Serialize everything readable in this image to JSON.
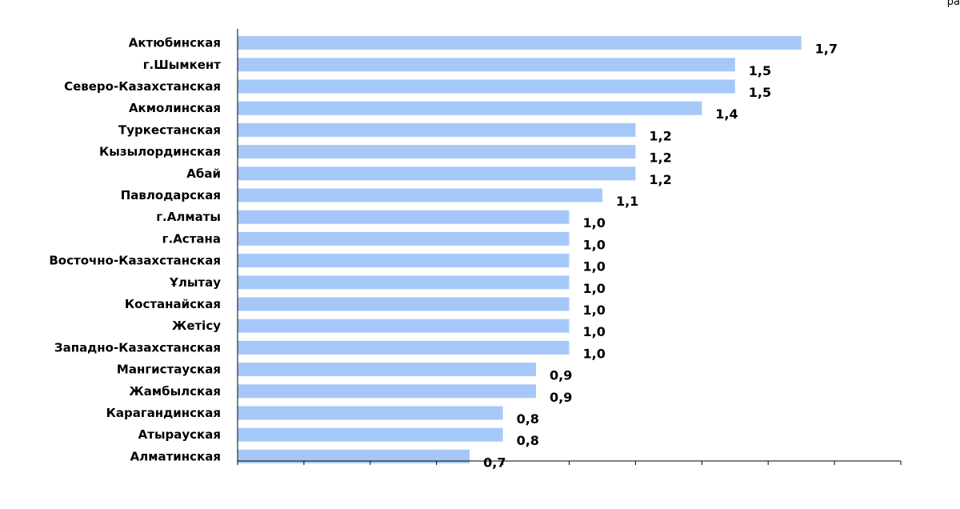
{
  "corner_text": "ра",
  "chart_data": {
    "type": "bar",
    "orientation": "horizontal",
    "categories": [
      "Актюбинская",
      "г.Шымкент",
      "Северо-Казахстанская",
      "Акмолинская",
      "Туркестанская",
      "Кызылординская",
      "Абай",
      "Павлодарская",
      "г.Алматы",
      "г.Астана",
      "Восточно-Казахстанская",
      "Ұлытау",
      "Костанайская",
      "Жетісу",
      "Западно-Казахстанская",
      "Мангистауская",
      "Жамбылская",
      "Карагандинская",
      "Атырауская",
      "Алматинская"
    ],
    "values": [
      1.7,
      1.5,
      1.5,
      1.4,
      1.2,
      1.2,
      1.2,
      1.1,
      1.0,
      1.0,
      1.0,
      1.0,
      1.0,
      1.0,
      1.0,
      0.9,
      0.9,
      0.8,
      0.8,
      0.7
    ],
    "data_labels": [
      "1,7",
      "1,5",
      "1,5",
      "1,4",
      "1,2",
      "1,2",
      "1,2",
      "1,1",
      "1,0",
      "1,0",
      "1,0",
      "1,0",
      "1,0",
      "1,0",
      "1,0",
      "0,9",
      "0,9",
      "0,8",
      "0,8",
      "0,7"
    ],
    "title": "",
    "xlabel": "",
    "ylabel": "",
    "xlim": [
      0,
      2.0
    ],
    "x_tick_step": 0.2,
    "x_tick_labels_visible": false,
    "grid": false,
    "legend": "none",
    "colors": {
      "bar": "#a6c8f8",
      "axis": "#000000",
      "text": "#000000"
    }
  }
}
